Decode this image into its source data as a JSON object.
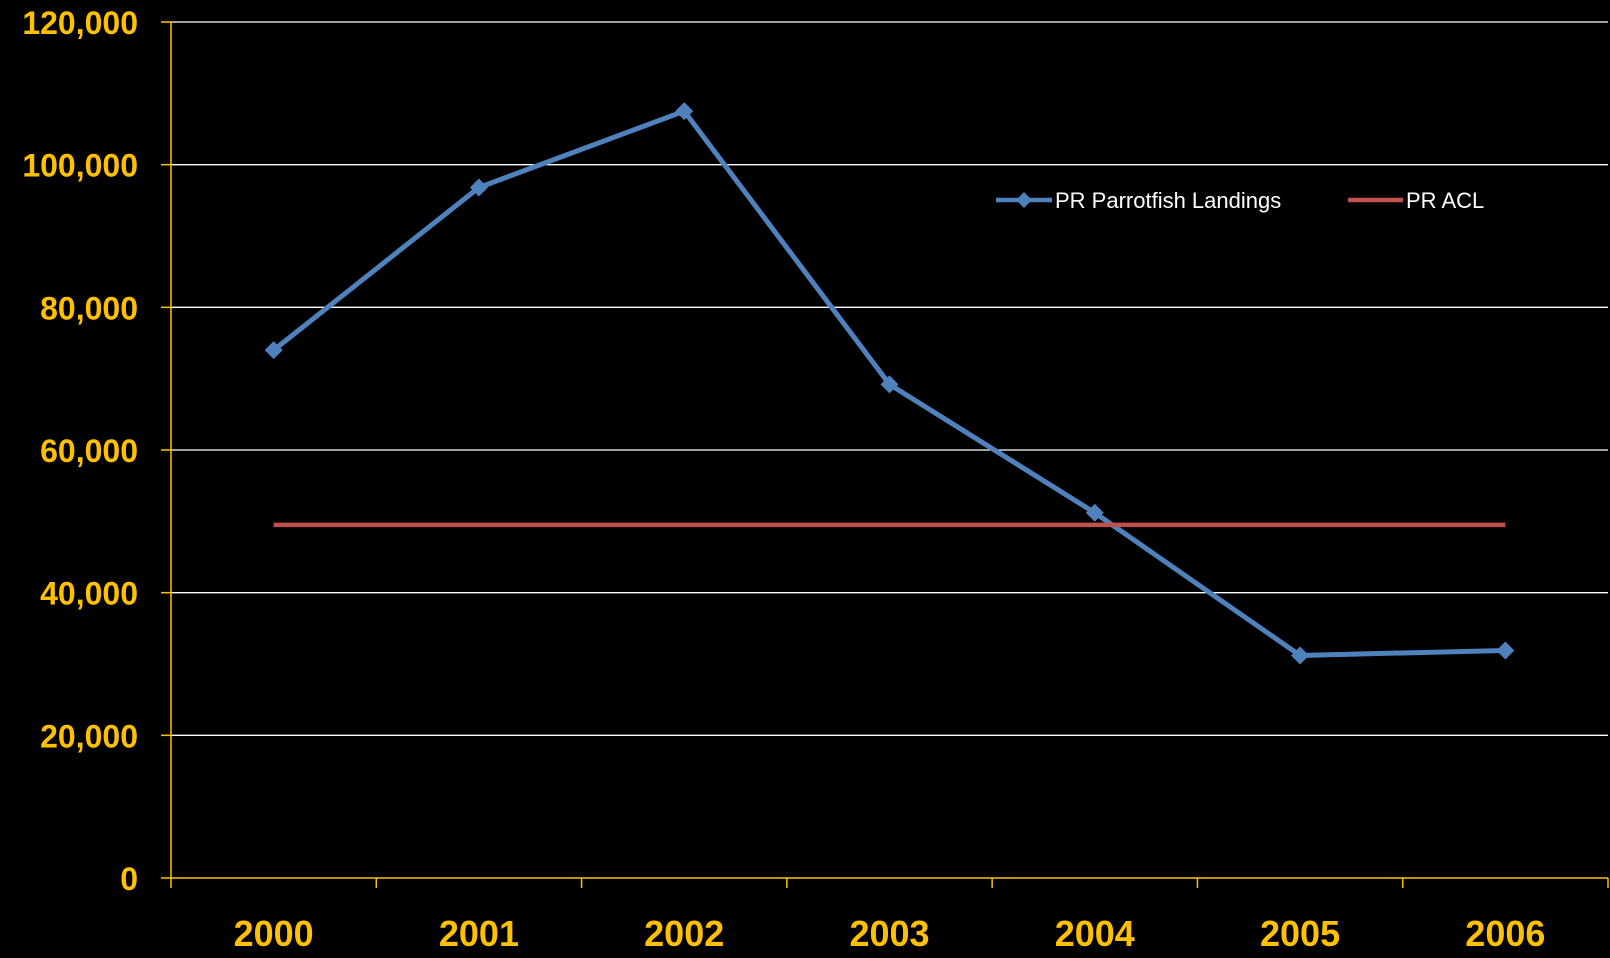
{
  "chart_data": {
    "type": "line",
    "title": "",
    "xlabel": "",
    "ylabel": "",
    "categories": [
      "2000",
      "2001",
      "2002",
      "2003",
      "2004",
      "2005",
      "2006"
    ],
    "series": [
      {
        "name": "PR Parrotfish Landings",
        "values": [
          74000,
          96800,
          107500,
          69200,
          51200,
          31200,
          31900
        ],
        "color": "#4f81bd",
        "marker": "diamond"
      },
      {
        "name": "PR ACL",
        "values": [
          49500,
          49500,
          49500,
          49500,
          49500,
          49500,
          49500
        ],
        "color": "#c0504d",
        "marker": "none"
      }
    ],
    "ylim": [
      0,
      120000
    ],
    "yticks": [
      0,
      20000,
      40000,
      60000,
      80000,
      100000,
      120000
    ],
    "ytick_labels": [
      "0",
      "20,000",
      "40,000",
      "60,000",
      "80,000",
      "100,000",
      "120,000"
    ],
    "grid": true,
    "legend_position": "top-right",
    "colors": {
      "background": "#000000",
      "axis": "#ffc000",
      "tick_label": "#ffc000",
      "gridline": "#ffffff",
      "legend_text": "#ffffff"
    }
  }
}
